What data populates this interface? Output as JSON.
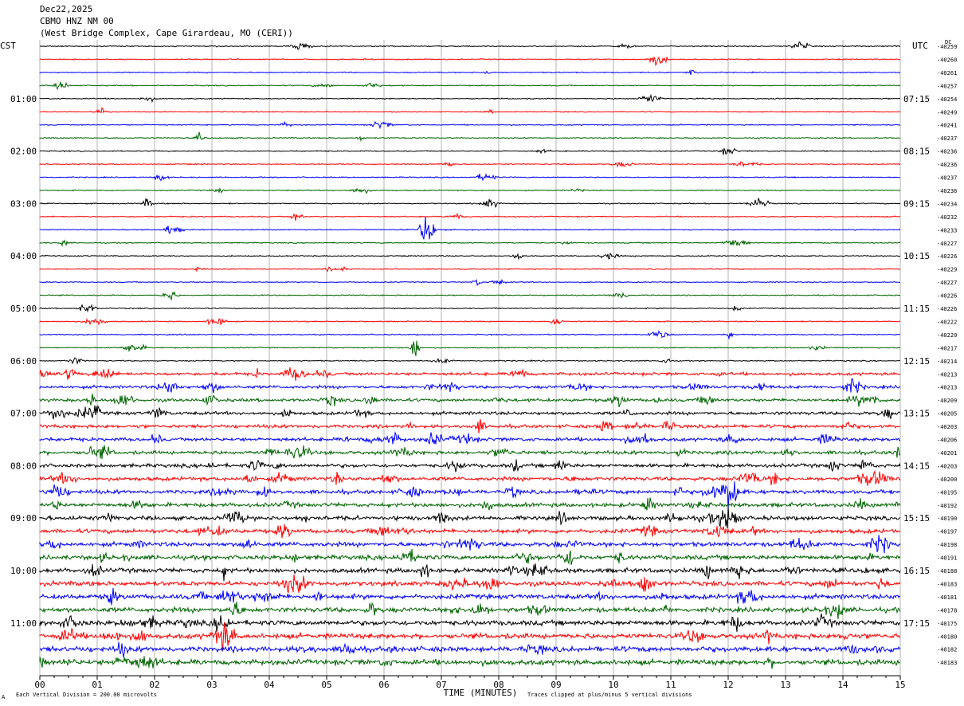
{
  "header": {
    "date": "Dec22,2025",
    "station": "CBMO HNZ NM 00",
    "location": "(West Bridge Complex, Cape Girardeau, MO (CERI))"
  },
  "left_tz": "CST",
  "right_tz": "UTC",
  "dc_label": "DC",
  "footer": {
    "corner_mark": "A",
    "division": "Each Vertical Division =  200.00 microvolts",
    "clip": "Traces clipped at plus/minus 5 vertical divisions"
  },
  "colors": {
    "traces": [
      "#000000",
      "#ff0000",
      "#0000ff",
      "#006400"
    ],
    "grid": "#808080"
  },
  "chart_data": {
    "type": "line",
    "title": "",
    "xlabel": "TIME (MINUTES)",
    "ylabel": "",
    "xlim": [
      0,
      15
    ],
    "x_ticks": [
      "00",
      "01",
      "02",
      "03",
      "04",
      "05",
      "06",
      "07",
      "08",
      "09",
      "10",
      "11",
      "12",
      "13",
      "14",
      "15"
    ],
    "grid": true,
    "series": [
      {
        "name": "",
        "values": [
          -40259,
          -40260,
          -40261,
          -40257,
          -40254,
          -40249,
          -40241,
          -40237,
          -40236,
          -40236,
          -40237,
          -40236,
          -40234,
          -40232,
          -40233,
          -40227,
          -40226,
          -40229,
          -40227,
          -40226,
          -40226,
          -40222,
          -40220,
          -40217,
          -40214,
          -40213,
          -40213,
          -40209,
          -40205,
          -40203,
          -40206,
          -40201,
          -40203,
          -40200,
          -40195,
          -40192,
          -40190,
          -40197,
          -40198,
          -40191,
          -40188,
          -40183,
          -40181,
          -40178,
          -40175,
          -40180,
          -40182,
          -40183
        ]
      }
    ],
    "row_labels_left": [
      "01:00",
      "02:00",
      "03:00",
      "04:00",
      "05:00",
      "06:00",
      "07:00",
      "08:00",
      "09:00",
      "10:00",
      "11:00"
    ],
    "row_labels_right": [
      "07:15",
      "08:15",
      "09:15",
      "10:15",
      "11:15",
      "12:15",
      "13:15",
      "14:15",
      "15:15",
      "16:15",
      "17:15"
    ],
    "dc_offsets": [
      "-40259",
      "-40260",
      "-40261",
      "-40257",
      "-40254",
      "-40249",
      "-40241",
      "-40237",
      "-40236",
      "-40236",
      "-40237",
      "-40236",
      "-40234",
      "-40232",
      "-40233",
      "-40227",
      "-40226",
      "-40229",
      "-40227",
      "-40226",
      "-40226",
      "-40222",
      "-40220",
      "-40217",
      "-40214",
      "-40213",
      "-40213",
      "-40209",
      "-40205",
      "-40203",
      "-40206",
      "-40201",
      "-40203",
      "-40200",
      "-40195",
      "-40192",
      "-40190",
      "-40197",
      "-40198",
      "-40191",
      "-40188",
      "-40183",
      "-40181",
      "-40178",
      "-40175",
      "-40180",
      "-40182",
      "-40183"
    ]
  }
}
